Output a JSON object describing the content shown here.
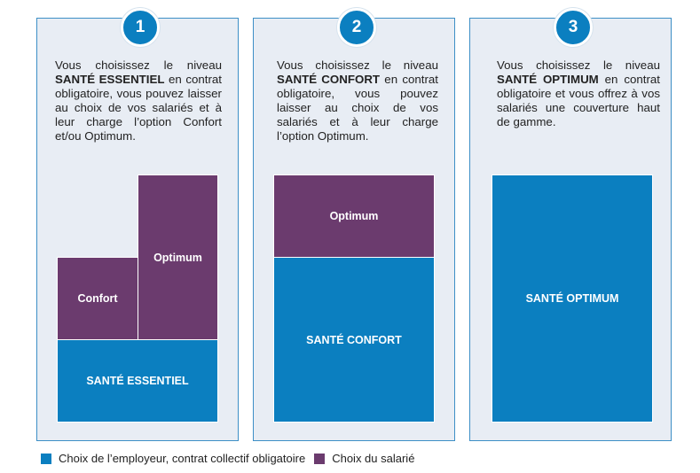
{
  "colors": {
    "employer": "#0b7fc0",
    "employee": "#6b3b6e",
    "panel_bg": "#e8edf4",
    "panel_border": "#3d8fc6"
  },
  "panels": [
    {
      "number": "1",
      "text_before": "Vous choisissez le niveau ",
      "text_bold": "SANTÉ ESSENTIEL",
      "text_after": " en contrat obligatoire, vous pouvez laisser au choix de vos salariés et à leur charge l’option Confort et/ou Optimum.",
      "blocks": {
        "base": "SANTÉ ESSENTIEL",
        "option_a": "Confort",
        "option_b": "Optimum"
      }
    },
    {
      "number": "2",
      "text_before": "Vous choisissez le niveau ",
      "text_bold": "SANTÉ CONFORT",
      "text_after": " en contrat obligatoire, vous pouvez laisser au choix de vos salariés et à leur charge l’option Optimum.",
      "blocks": {
        "base": "SANTÉ CONFORT",
        "option": "Optimum"
      }
    },
    {
      "number": "3",
      "text_before": "Vous choisissez le niveau ",
      "text_bold": "SANTÉ OPTIMUM",
      "text_after": " en contrat obligatoire et vous offrez à vos salariés une couverture haut de gamme.",
      "blocks": {
        "base": "SANTÉ OPTIMUM"
      }
    }
  ],
  "legend": {
    "employer": "Choix de l’employeur, contrat collectif obligatoire",
    "employee": "Choix du salarié"
  }
}
